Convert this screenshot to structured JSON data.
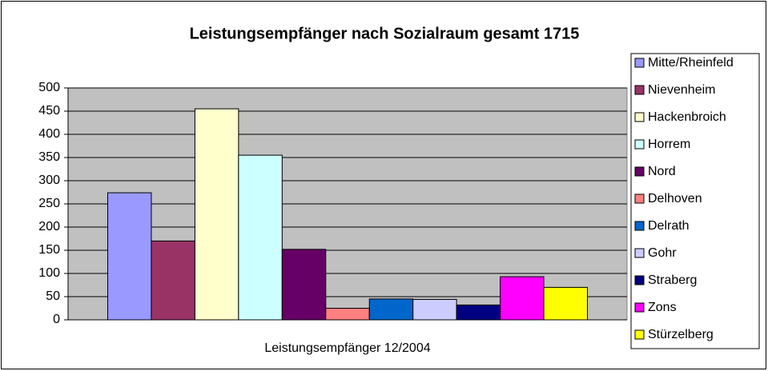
{
  "chart_data": {
    "type": "bar",
    "title": "Leistungsempfänger nach Sozialraum gesamt 1715",
    "categories": [
      "Leistungsempfänger 12/2004"
    ],
    "series": [
      {
        "name": "Mitte/Rheinfeld",
        "color": "#9999ff",
        "values": [
          274
        ]
      },
      {
        "name": "Nievenheim",
        "color": "#993366",
        "values": [
          170
        ]
      },
      {
        "name": "Hackenbroich",
        "color": "#ffffcc",
        "values": [
          455
        ]
      },
      {
        "name": "Horrem",
        "color": "#ccffff",
        "values": [
          355
        ]
      },
      {
        "name": "Nord",
        "color": "#660066",
        "values": [
          152
        ]
      },
      {
        "name": "Delhoven",
        "color": "#ff8080",
        "values": [
          25
        ]
      },
      {
        "name": "Delrath",
        "color": "#0066cc",
        "values": [
          45
        ]
      },
      {
        "name": "Gohr",
        "color": "#ccccff",
        "values": [
          44
        ]
      },
      {
        "name": "Straberg",
        "color": "#000080",
        "values": [
          32
        ]
      },
      {
        "name": "Zons",
        "color": "#ff00ff",
        "values": [
          93
        ]
      },
      {
        "name": "Stürzelberg",
        "color": "#ffff00",
        "values": [
          70
        ]
      }
    ],
    "ylim": [
      0,
      500
    ],
    "yticks": [
      0,
      50,
      100,
      150,
      200,
      250,
      300,
      350,
      400,
      450,
      500
    ],
    "grid": true,
    "legend": "right"
  }
}
